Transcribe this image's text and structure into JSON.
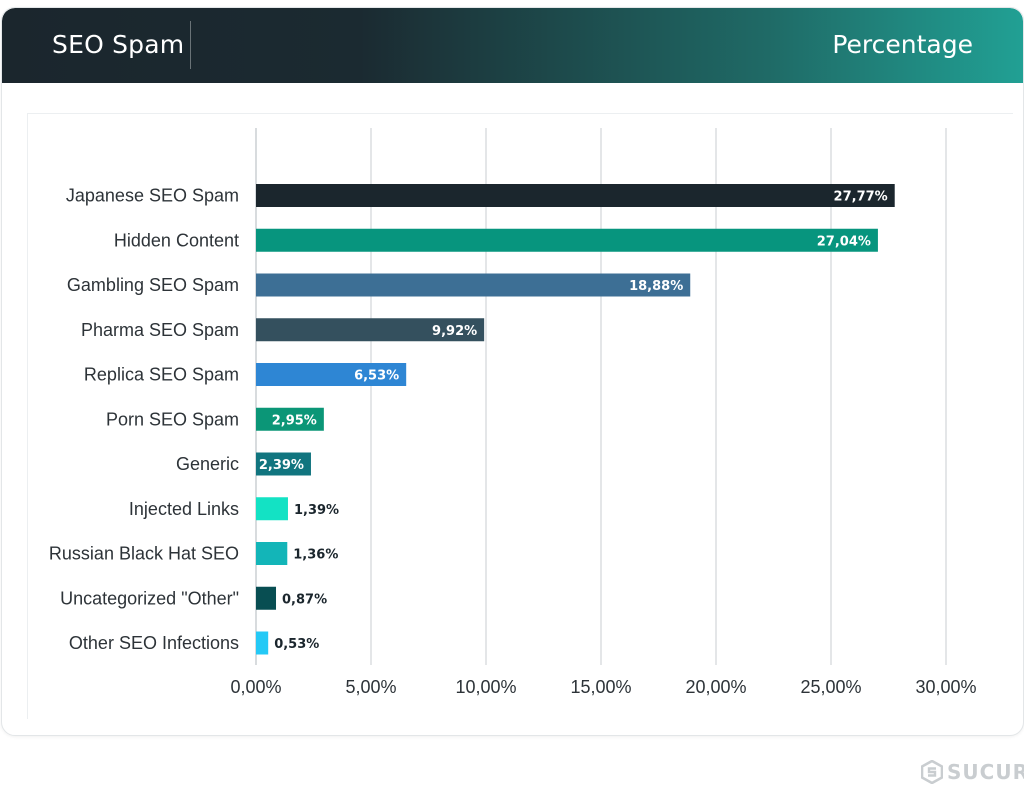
{
  "header": {
    "title": "SEO Spam",
    "metric": "Percentage"
  },
  "brand": {
    "name": "SUCURI",
    "icon": "sucuri-logo-icon"
  },
  "chart_data": {
    "type": "bar",
    "orientation": "horizontal",
    "categories": [
      "Japanese SEO Spam",
      "Hidden Content",
      "Gambling SEO Spam",
      "Pharma SEO Spam",
      "Replica SEO Spam",
      "Porn SEO Spam",
      "Generic",
      "Injected Links",
      "Russian Black Hat SEO",
      "Uncategorized \"Other\"",
      "Other SEO Infections"
    ],
    "values": [
      27.77,
      27.04,
      18.88,
      9.92,
      6.53,
      2.95,
      2.39,
      1.39,
      1.36,
      0.87,
      0.53
    ],
    "data_labels": [
      "27,77%",
      "27,04%",
      "18,88%",
      "9,92%",
      "6,53%",
      "2,95%",
      "2,39%",
      "1,39%",
      "1,36%",
      "0,87%",
      "0,53%"
    ],
    "label_inside": [
      true,
      true,
      true,
      true,
      true,
      true,
      true,
      false,
      false,
      false,
      false
    ],
    "colors": [
      "#1b262d",
      "#07957e",
      "#3d6f95",
      "#34505e",
      "#2e86d4",
      "#0b9677",
      "#11757f",
      "#13e2c4",
      "#13b5b8",
      "#084e52",
      "#24c9f6"
    ],
    "xticks": [
      "0,00%",
      "5,00%",
      "10,00%",
      "15,00%",
      "20,00%",
      "25,00%",
      "30,00%"
    ],
    "xlim": [
      0,
      30
    ],
    "grid": true,
    "title": "SEO Spam",
    "xlabel": "",
    "ylabel": ""
  }
}
